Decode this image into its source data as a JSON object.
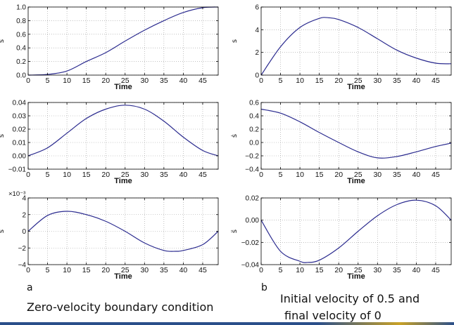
{
  "captions": {
    "a_letter": "a",
    "b_letter": "b",
    "a_text": "Zero-velocity boundary condition",
    "b_text_line1": "Initial velocity of 0.5 and",
    "b_text_line2": "final velocity of 0"
  },
  "colors": {
    "line": "#2b2b8f",
    "axis": "#000000",
    "grid": "#9a9a9a",
    "bottom_rule": "#2b4f8a"
  },
  "chart_data": [
    {
      "id": "a-s",
      "type": "line",
      "xlabel": "Time",
      "ylabel": "s",
      "xlim": [
        0,
        49
      ],
      "ylim": [
        0,
        1
      ],
      "xticks": [
        0,
        5,
        10,
        15,
        20,
        25,
        30,
        35,
        40,
        45
      ],
      "yticks": [
        0.0,
        0.2,
        0.4,
        0.6,
        0.8,
        1.0
      ],
      "ytick_labels": [
        "0.0",
        "0.2",
        "0.4",
        "0.6",
        "0.8",
        "1.0"
      ],
      "grid": true,
      "exponent": "",
      "x": [
        0,
        5,
        10,
        15,
        20,
        25,
        30,
        35,
        40,
        45,
        49
      ],
      "y": [
        0.0,
        0.01,
        0.06,
        0.2,
        0.33,
        0.5,
        0.66,
        0.8,
        0.92,
        0.99,
        1.0
      ]
    },
    {
      "id": "b-s",
      "type": "line",
      "xlabel": "Time",
      "ylabel": "s",
      "xlim": [
        0,
        49
      ],
      "ylim": [
        0,
        6
      ],
      "xticks": [
        0,
        5,
        10,
        15,
        20,
        25,
        30,
        35,
        40,
        45
      ],
      "yticks": [
        0,
        2,
        4,
        6
      ],
      "ytick_labels": [
        "0",
        "2",
        "4",
        "6"
      ],
      "grid": true,
      "exponent": "",
      "x": [
        0,
        5,
        10,
        15,
        17.5,
        20,
        25,
        30,
        35,
        40,
        45,
        49
      ],
      "y": [
        0.0,
        2.5,
        4.2,
        5.0,
        5.05,
        4.9,
        4.2,
        3.2,
        2.2,
        1.5,
        1.05,
        1.0
      ]
    },
    {
      "id": "a-sdot",
      "type": "line",
      "xlabel": "Time",
      "ylabel": "ṡ",
      "xlim": [
        0,
        49
      ],
      "ylim": [
        -0.01,
        0.04
      ],
      "xticks": [
        0,
        5,
        10,
        15,
        20,
        25,
        30,
        35,
        40,
        45
      ],
      "yticks": [
        -0.01,
        0.0,
        0.01,
        0.02,
        0.03,
        0.04
      ],
      "ytick_labels": [
        "−0.01",
        "0.00",
        "0.01",
        "0.02",
        "0.03",
        "0.04"
      ],
      "grid": true,
      "exponent": "",
      "x": [
        0,
        5,
        10,
        15,
        20,
        25,
        30,
        35,
        40,
        45,
        49
      ],
      "y": [
        0.0,
        0.006,
        0.017,
        0.028,
        0.035,
        0.038,
        0.035,
        0.026,
        0.014,
        0.004,
        0.0
      ]
    },
    {
      "id": "b-sdot",
      "type": "line",
      "xlabel": "Time",
      "ylabel": "ṡ",
      "xlim": [
        0,
        49
      ],
      "ylim": [
        -0.4,
        0.6
      ],
      "xticks": [
        0,
        5,
        10,
        15,
        20,
        25,
        30,
        35,
        40,
        45
      ],
      "yticks": [
        -0.4,
        -0.2,
        0.0,
        0.2,
        0.4,
        0.6
      ],
      "ytick_labels": [
        "−0.4",
        "−0.2",
        "0.0",
        "0.2",
        "0.4",
        "0.6"
      ],
      "grid": true,
      "exponent": "",
      "x": [
        0,
        5,
        10,
        15,
        20,
        25,
        30,
        35,
        40,
        45,
        49
      ],
      "y": [
        0.5,
        0.44,
        0.31,
        0.15,
        0.0,
        -0.14,
        -0.23,
        -0.21,
        -0.14,
        -0.06,
        -0.01
      ]
    },
    {
      "id": "a-sddot",
      "type": "line",
      "xlabel": "Time",
      "ylabel": "s̈",
      "xlim": [
        0,
        49
      ],
      "ylim": [
        -4,
        4
      ],
      "xticks": [
        0,
        5,
        10,
        15,
        20,
        25,
        30,
        35,
        40,
        45
      ],
      "yticks": [
        -4,
        -2,
        0,
        2,
        4
      ],
      "ytick_labels": [
        "−4",
        "−2",
        "0",
        "2",
        "4"
      ],
      "grid": true,
      "exponent": "×10⁻³",
      "x": [
        0,
        5,
        10,
        15,
        20,
        25,
        30,
        35,
        38,
        40,
        45,
        49
      ],
      "y": [
        0.0,
        1.9,
        2.4,
        2.0,
        1.2,
        0.0,
        -1.4,
        -2.3,
        -2.4,
        -2.3,
        -1.6,
        0.0
      ]
    },
    {
      "id": "b-sddot",
      "type": "line",
      "xlabel": "Time",
      "ylabel": "s̈",
      "xlim": [
        0,
        49
      ],
      "ylim": [
        -0.04,
        0.02
      ],
      "xticks": [
        0,
        5,
        10,
        15,
        20,
        25,
        30,
        35,
        40,
        45
      ],
      "yticks": [
        -0.04,
        -0.02,
        0.0,
        0.02
      ],
      "ytick_labels": [
        "−0.04",
        "−0.02",
        "0.00",
        "0.02"
      ],
      "grid": true,
      "exponent": "",
      "x": [
        0,
        5,
        10,
        12,
        15,
        20,
        25,
        30,
        35,
        40,
        45,
        49
      ],
      "y": [
        0.0,
        -0.028,
        -0.037,
        -0.038,
        -0.036,
        -0.025,
        -0.01,
        0.004,
        0.014,
        0.018,
        0.013,
        0.0
      ]
    }
  ]
}
